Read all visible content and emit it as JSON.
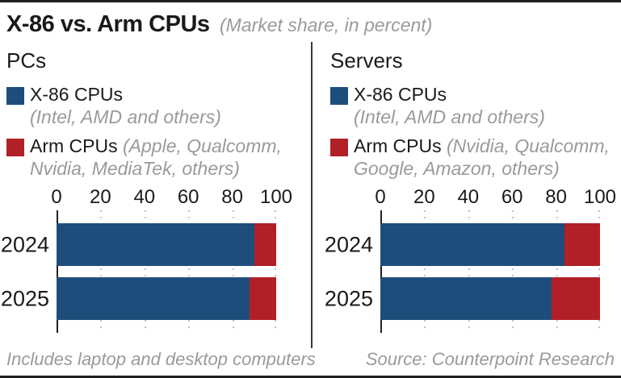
{
  "title": "X-86 vs. Arm CPUs",
  "subtitle": "(Market share, in percent)",
  "colors": {
    "x86_blue": "#1e4d7b",
    "arm_red": "#b12026",
    "muted_gray": "#9a9a9a"
  },
  "footer": {
    "note": "Includes laptop and desktop computers",
    "source": "Source: Counterpoint Research"
  },
  "chart_data": [
    {
      "type": "bar",
      "panel": "PCs",
      "orientation": "horizontal",
      "stacked": true,
      "grid": true,
      "xlim": [
        0,
        100
      ],
      "ticks": [
        "0",
        "20",
        "40",
        "60",
        "80",
        "100"
      ],
      "categories": [
        "2024",
        "2025"
      ],
      "series": [
        {
          "name": "X-86 CPUs",
          "detail": "(Intel, AMD and others)",
          "color": "#1e4d7b",
          "values": [
            90,
            88
          ]
        },
        {
          "name": "Arm CPUs",
          "detail": "(Apple, Qualcomm, Nvidia, MediaTek, others)",
          "color": "#b12026",
          "values": [
            10,
            12
          ]
        }
      ]
    },
    {
      "type": "bar",
      "panel": "Servers",
      "orientation": "horizontal",
      "stacked": true,
      "grid": true,
      "xlim": [
        0,
        100
      ],
      "ticks": [
        "0",
        "20",
        "40",
        "60",
        "80",
        "100"
      ],
      "categories": [
        "2024",
        "2025"
      ],
      "series": [
        {
          "name": "X-86 CPUs",
          "detail": "(Intel, AMD and others)",
          "color": "#1e4d7b",
          "values": [
            84,
            78
          ]
        },
        {
          "name": "Arm CPUs",
          "detail": "(Nvidia, Qualcomm, Google, Amazon, others)",
          "color": "#b12026",
          "values": [
            16,
            22
          ]
        }
      ]
    }
  ]
}
